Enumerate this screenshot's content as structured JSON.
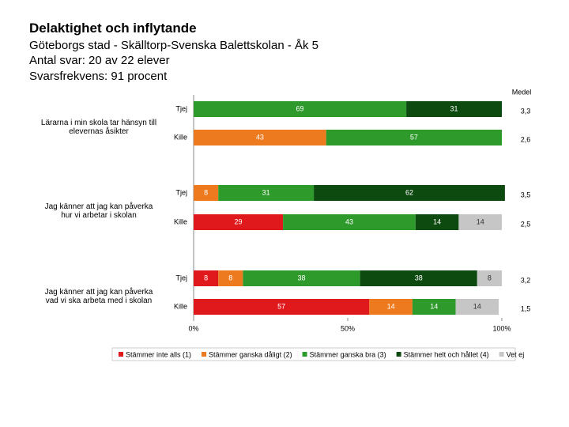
{
  "chart_data": {
    "type": "stacked-bar-horizontal",
    "title": "Delaktighet och inflytande",
    "subtitles": [
      "Göteborgs stad - Skälltorp-Svenska Balettskolan - Åk 5",
      "Antal svar: 20 av 22 elever",
      "Svarsfrekvens: 91 procent"
    ],
    "groups": [
      "Lärarna i min skola tar hänsyn till elevernas åsikter",
      "Jag känner att jag kan påverka hur vi arbetar i skolan",
      "Jag känner att jag kan påverka vad vi ska arbeta med i skolan"
    ],
    "categories": [
      "Tjej",
      "Kille",
      "Tjej",
      "Kille",
      "Tjej",
      "Kille"
    ],
    "series": [
      {
        "name": "Stämmer inte alls (1)",
        "color": "#e0191d",
        "values": [
          0,
          0,
          0,
          29,
          8,
          57
        ]
      },
      {
        "name": "Stämmer ganska dåligt (2)",
        "color": "#ee7a1f",
        "values": [
          0,
          43,
          8,
          0,
          8,
          14
        ]
      },
      {
        "name": "Stämmer ganska bra (3)",
        "color": "#2f9a2c",
        "values": [
          69,
          57,
          31,
          43,
          38,
          14
        ]
      },
      {
        "name": "Stämmer helt och hållet (4)",
        "color": "#0d4a10",
        "values": [
          31,
          0,
          62,
          14,
          38,
          0
        ]
      },
      {
        "name": "Vet ej",
        "color": "#c6c6c6",
        "values": [
          0,
          0,
          0,
          14,
          8,
          14
        ]
      }
    ],
    "medel_title": "Medel",
    "medel": [
      3.3,
      2.6,
      3.5,
      2.5,
      3.2,
      1.5
    ],
    "medel_labels": [
      "3,3",
      "2,6",
      "3,5",
      "2,5",
      "3,2",
      "1,5"
    ],
    "xlim": [
      0,
      100
    ],
    "xticks": [
      {
        "value": 0,
        "label": "0%"
      },
      {
        "value": 50,
        "label": "50%"
      },
      {
        "value": 100,
        "label": "100%"
      }
    ]
  }
}
